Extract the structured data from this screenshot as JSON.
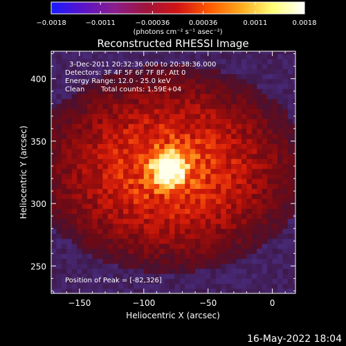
{
  "chart_data": {
    "type": "heatmap",
    "title": "Reconstructed RHESSI Image",
    "xlabel": "Heliocentric X (arcsec)",
    "ylabel": "Heliocentric Y (arcsec)",
    "xlim": [
      -172,
      18
    ],
    "ylim": [
      228,
      422
    ],
    "x_ticks": [
      -150,
      -100,
      -50,
      0
    ],
    "x_tick_labels": [
      "−150",
      "−100",
      "−50",
      "0"
    ],
    "y_ticks": [
      250,
      300,
      350,
      400
    ],
    "y_tick_labels": [
      "250",
      "300",
      "350",
      "400"
    ],
    "colorbar": {
      "range": [
        -0.0018,
        0.0018
      ],
      "ticks": [
        -0.0018,
        -0.0011,
        -0.00036,
        0.00036,
        0.0011,
        0.0018
      ],
      "tick_labels": [
        "−0.0018",
        "−0.0011",
        "−0.00036",
        "0.00036",
        "0.0011",
        "0.0018"
      ],
      "unit_label": "(photons cm⁻² s⁻¹ asec⁻²)",
      "colormap": [
        "#1a1aff",
        "#5a14c8",
        "#8a1e8c",
        "#a0143c",
        "#d21414",
        "#ff5a00",
        "#ffaa1e",
        "#ffff78",
        "#ffffff"
      ]
    },
    "peak_position": [
      -82,
      326
    ],
    "annotations": {
      "time_range": "3-Dec-2011 20:32:36.000 to 20:38:36.000",
      "detectors": "Detectors: 3F 4F 5F 6F 7F 8F, Att 0",
      "energy_range": "Energy Range: 12.0 - 25.0 keV",
      "clean_label": "Clean",
      "total_counts": "Total counts: 1.59E+04",
      "peak_label": "Position of Peak = [-82,326]"
    }
  },
  "footer": {
    "date_stamp": "16-May-2022 18:04"
  }
}
